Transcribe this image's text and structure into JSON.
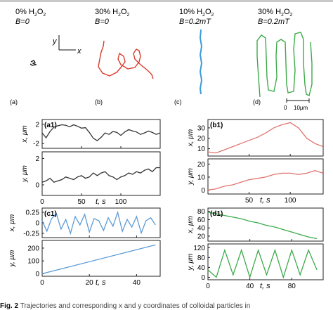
{
  "figure": {
    "caption_label": "Fig. 2",
    "caption_text": "Trajectories and corresponding x and y coordinates of colloidal particles in"
  },
  "trajectories": [
    {
      "label": "(a)",
      "conc": "0% H",
      "sub": "2",
      "o": "O",
      "sub2": "2",
      "field": "B=0",
      "color": "#222222"
    },
    {
      "label": "(b)",
      "conc": "30% H",
      "sub": "2",
      "o": "O",
      "sub2": "2",
      "field": "B=0",
      "color": "#d93a2b"
    },
    {
      "label": "(c)",
      "conc": "10% H",
      "sub": "2",
      "o": "O",
      "sub2": "2",
      "field": "B=0.2mT",
      "color": "#3b9bd8"
    },
    {
      "label": "(d)",
      "conc": "30% H",
      "sub": "2",
      "o": "O",
      "sub2": "2",
      "field": "B=0.2mT",
      "color": "#3daa4a"
    }
  ],
  "axes_arrow": {
    "x": "x",
    "y": "y"
  },
  "scalebar": {
    "zero": "0",
    "label": "10μm"
  },
  "chart_data": [
    {
      "id": "a1",
      "type": "line",
      "panel_label": "(a1)",
      "color": "#333333",
      "top": {
        "ylabel": "x, μm",
        "yticks": [
          2,
          -2
        ],
        "ylim": [
          -3,
          3
        ],
        "x": [
          0,
          5,
          10,
          15,
          20,
          25,
          30,
          35,
          40,
          45,
          50,
          55,
          60,
          65,
          70,
          75,
          80,
          85,
          90,
          95,
          100,
          105,
          110,
          115,
          120,
          125,
          130,
          135,
          140,
          145,
          150
        ],
        "y": [
          0.2,
          -0.8,
          0.5,
          1.4,
          1.7,
          1.9,
          1.8,
          1.5,
          1.9,
          1.6,
          1.2,
          1.3,
          0.3,
          -0.9,
          -1.4,
          -0.7,
          0.2,
          -0.1,
          0.5,
          0.3,
          -0.3,
          0.4,
          0.9,
          0.6,
          0.4,
          -0.1,
          0.2,
          0.6,
          0.3,
          -0.1,
          0.2
        ]
      },
      "bottom": {
        "ylabel": "y, μm",
        "yticks": [
          2,
          0
        ],
        "ylim": [
          -0.8,
          2.5
        ],
        "x": [
          0,
          5,
          10,
          15,
          20,
          25,
          30,
          35,
          40,
          45,
          50,
          55,
          60,
          65,
          70,
          75,
          80,
          85,
          90,
          95,
          100,
          105,
          110,
          115,
          120,
          125,
          130,
          135,
          140,
          145,
          150
        ],
        "y": [
          0.2,
          0.3,
          0.5,
          0.2,
          0.3,
          0.4,
          0.6,
          0.5,
          0.4,
          0.6,
          0.7,
          0.5,
          0.6,
          0.9,
          0.7,
          0.9,
          1.0,
          0.7,
          0.6,
          0.4,
          0.6,
          0.7,
          0.9,
          0.8,
          1.0,
          0.9,
          1.1,
          1.2,
          1.0,
          1.3,
          1.3
        ]
      },
      "xticks": [
        0,
        50,
        100
      ],
      "xlim": [
        0,
        150
      ],
      "xlabel": "t, s"
    },
    {
      "id": "b1",
      "type": "line",
      "panel_label": "(b1)",
      "color": "#e07470",
      "top": {
        "ylabel": "x, μm",
        "yticks": [
          30,
          20,
          10
        ],
        "ylim": [
          3,
          38
        ],
        "x": [
          0,
          10,
          20,
          30,
          40,
          50,
          60,
          70,
          80,
          90,
          100,
          110,
          120,
          130,
          140
        ],
        "y": [
          7,
          6,
          9,
          12,
          15,
          18,
          21,
          25,
          30,
          33,
          35,
          30,
          20,
          15,
          12
        ]
      },
      "bottom": {
        "ylabel": "y, μm",
        "yticks": [
          20,
          10,
          0
        ],
        "ylim": [
          -3,
          24
        ],
        "x": [
          0,
          10,
          20,
          30,
          40,
          50,
          60,
          70,
          80,
          90,
          100,
          110,
          120,
          130,
          140
        ],
        "y": [
          0,
          1,
          3,
          4,
          6,
          8,
          9,
          10,
          12,
          13,
          13,
          12,
          13,
          15,
          13
        ]
      },
      "xticks": [
        50,
        100
      ],
      "xlim": [
        0,
        140
      ],
      "xlabel": "t, s"
    },
    {
      "id": "c1",
      "type": "line",
      "panel_label": "(c1)",
      "color": "#5b9bd5",
      "top": {
        "ylabel": "x, μm",
        "yticks": [
          0.25,
          0.0,
          -0.25
        ],
        "ylim": [
          -0.35,
          0.35
        ],
        "x": [
          0,
          2,
          4,
          6,
          8,
          10,
          12,
          14,
          16,
          18,
          20,
          22,
          24,
          26,
          28,
          30,
          32,
          34,
          36,
          38,
          40,
          42,
          44,
          46,
          48
        ],
        "y": [
          0.05,
          -0.2,
          0.1,
          0.22,
          -0.15,
          0.08,
          -0.25,
          0.15,
          -0.05,
          0.2,
          -0.22,
          0.1,
          0.05,
          -0.18,
          0.12,
          -0.08,
          0.25,
          -0.2,
          0.08,
          -0.1,
          0.15,
          -0.24,
          0.05,
          0.12,
          -0.05
        ]
      },
      "bottom": {
        "ylabel": "y, μm",
        "yticks": [
          200,
          100,
          0
        ],
        "ylim": [
          -20,
          260
        ],
        "x": [
          0,
          48
        ],
        "y": [
          0,
          225
        ]
      },
      "xticks": [
        0,
        20,
        40
      ],
      "xlim": [
        0,
        50
      ],
      "xlabel": "t, s"
    },
    {
      "id": "d1",
      "type": "line",
      "panel_label": "(d1)",
      "color": "#3daa4a",
      "top": {
        "ylabel": "x, μm",
        "yticks": [
          80,
          60,
          40,
          20
        ],
        "ylim": [
          8,
          88
        ],
        "x": [
          0,
          8,
          16,
          24,
          32,
          40,
          48,
          56,
          64,
          72,
          80,
          88,
          96,
          104
        ],
        "y": [
          78,
          74,
          70,
          66,
          62,
          56,
          52,
          46,
          42,
          36,
          30,
          24,
          18,
          14
        ]
      },
      "bottom": {
        "ylabel": "y, μm",
        "yticks": [
          120,
          80,
          40,
          0
        ],
        "ylim": [
          -10,
          135
        ],
        "x": [
          0,
          8,
          16,
          24,
          32,
          40,
          48,
          56,
          64,
          72,
          80,
          88,
          96,
          104
        ],
        "y": [
          30,
          0,
          110,
          10,
          110,
          0,
          110,
          10,
          110,
          0,
          110,
          10,
          110,
          30
        ]
      },
      "xticks": [
        0,
        40,
        80
      ],
      "xlim": [
        0,
        110
      ],
      "xlabel": "t, s"
    }
  ]
}
